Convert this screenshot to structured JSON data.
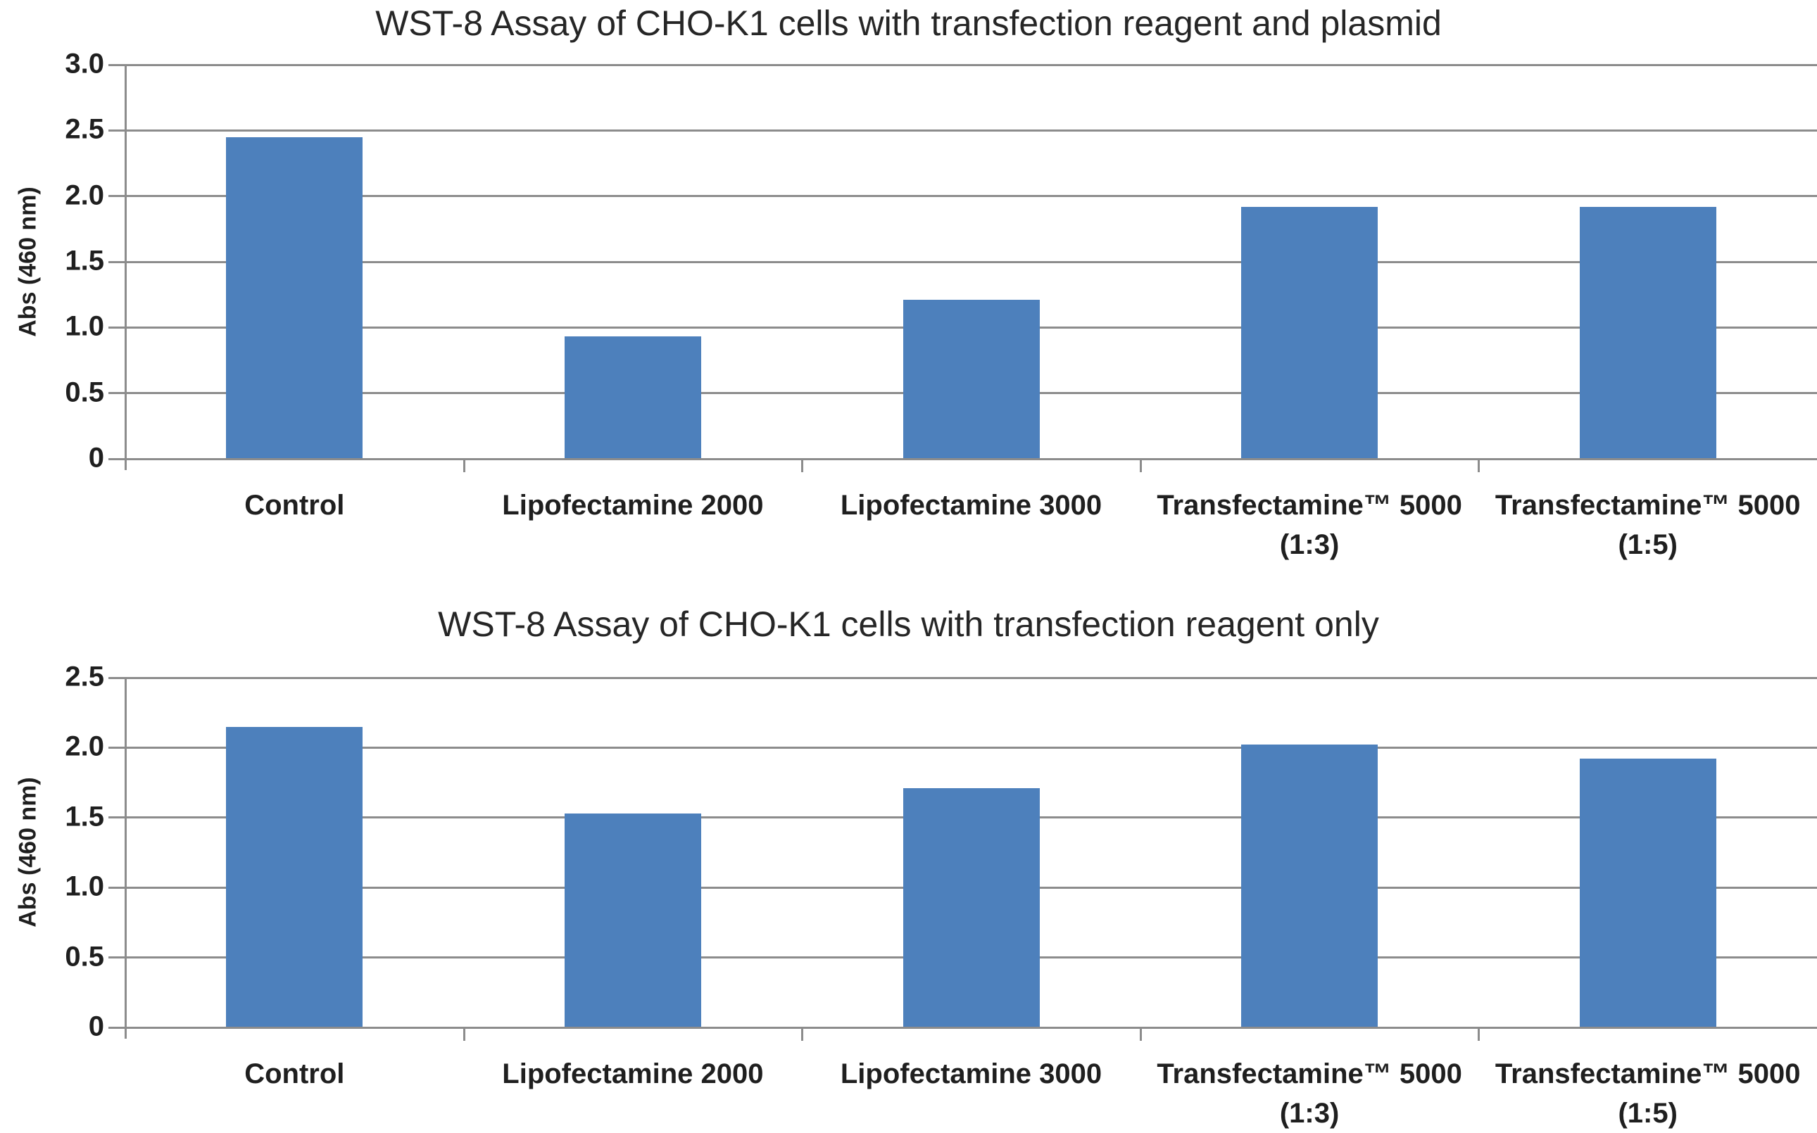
{
  "page": {
    "background": "#FFFFFF"
  },
  "colors": {
    "bar": "#4D80BC",
    "gridline": "#8C8C8C",
    "axis": "#8C8C8C",
    "text": "#1F1F1F"
  },
  "chart_data": [
    {
      "type": "bar",
      "title": "WST-8 Assay of CHO-K1 cells with transfection reagent and plasmid",
      "ylabel": "Abs (460 nm)",
      "xlabel": "",
      "categories": [
        "Control",
        "Lipofectamine 2000",
        "Lipofectamine 3000",
        "Transfectamine™ 5000 (1:3)",
        "Transfectamine™ 5000 (1:5)"
      ],
      "category_label_lines": [
        [
          "Control"
        ],
        [
          "Lipofectamine 2000"
        ],
        [
          "Lipofectamine 3000"
        ],
        [
          "Transfectamine™ 5000",
          "(1:3)"
        ],
        [
          "Transfectamine™ 5000",
          "(1:5)"
        ]
      ],
      "values": [
        2.45,
        0.93,
        1.21,
        1.92,
        1.92
      ],
      "ylim": [
        0,
        3.0
      ],
      "ytick_step": 0.5,
      "ytick_labels": [
        "0",
        "0.5",
        "1.0",
        "1.5",
        "2.0",
        "2.5",
        "3.0"
      ],
      "grid": true,
      "legend": "none",
      "bar_color": "#4D80BC"
    },
    {
      "type": "bar",
      "title": "WST-8 Assay of CHO-K1 cells with transfection reagent only",
      "ylabel": "Abs (460 nm)",
      "xlabel": "",
      "categories": [
        "Control",
        "Lipofectamine 2000",
        "Lipofectamine 3000",
        "Transfectamine™ 5000 (1:3)",
        "Transfectamine™ 5000 (1:5)"
      ],
      "category_label_lines": [
        [
          "Control"
        ],
        [
          "Lipofectamine 2000"
        ],
        [
          "Lipofectamine 3000"
        ],
        [
          "Transfectamine™ 5000",
          "(1:3)"
        ],
        [
          "Transfectamine™ 5000",
          "(1:5)"
        ]
      ],
      "values": [
        2.15,
        1.53,
        1.71,
        2.02,
        1.92
      ],
      "ylim": [
        0,
        2.5
      ],
      "ytick_step": 0.5,
      "ytick_labels": [
        "0",
        "0.5",
        "1.0",
        "1.5",
        "2.0",
        "2.5"
      ],
      "grid": true,
      "legend": "none",
      "bar_color": "#4D80BC"
    }
  ]
}
